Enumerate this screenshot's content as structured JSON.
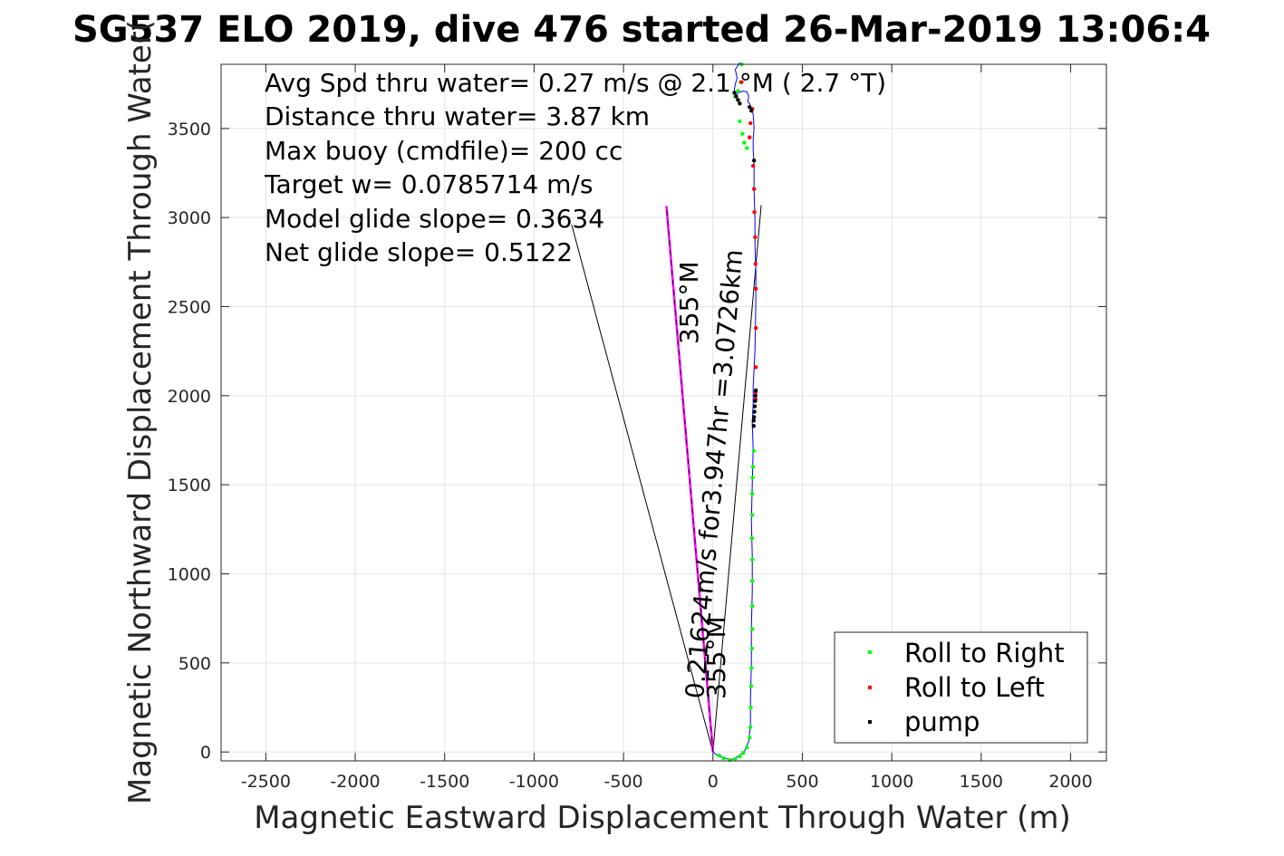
{
  "chart_data": {
    "type": "line",
    "title": "SG537 ELO 2019, dive 476 started 26-Mar-2019 13:06:4",
    "xlabel": "Magnetic Eastward Displacement Through Water (m)",
    "ylabel": "Magnetic Northward Displacement Through Water(",
    "xlim": [
      -2750,
      2200
    ],
    "ylim": [
      -50,
      3860
    ],
    "xticks": [
      -2500,
      -2000,
      -1500,
      -1000,
      -500,
      0,
      500,
      1000,
      1500,
      2000
    ],
    "yticks": [
      0,
      500,
      1000,
      1500,
      2000,
      2500,
      3000,
      3500
    ],
    "grid": true,
    "annotations": [
      "Avg Spd thru water=  0.27 m/s @   2.1 °M (  2.7 °T)",
      "Distance thru water=  3.87 km",
      "Max buoy (cmdfile)= 200 cc",
      "Target w= 0.0785714 m/s",
      "Model glide slope= 0.3634",
      "Net glide slope= 0.5122"
    ],
    "vector_labels": {
      "current": "0.21624m/s for3.947hr =3.0726km",
      "current_heading": "355°M",
      "surface_heading": "355°M"
    },
    "legend": {
      "placement": "bottom-right",
      "entries": [
        {
          "label": "Roll to Right",
          "color": "#00ff00"
        },
        {
          "label": "Roll to Left",
          "color": "#ff0000"
        },
        {
          "label": "pump",
          "color": "#000000"
        }
      ]
    },
    "colors": {
      "track": "#0000ff",
      "current_vector": "#ff00ff",
      "wedge": "#000000",
      "grid": "#e3e3e3"
    },
    "track": {
      "x": [
        0,
        20,
        50,
        100,
        150,
        180,
        200,
        210,
        210,
        215,
        215,
        220,
        220,
        215,
        220,
        225,
        220,
        225,
        225,
        230,
        235,
        238,
        240,
        240,
        235,
        235,
        230,
        230,
        225,
        225,
        230,
        225,
        215,
        210,
        205,
        195,
        200,
        190,
        170,
        140,
        125,
        120,
        125,
        135,
        130,
        125,
        150
      ],
      "y": [
        0,
        -15,
        -30,
        -45,
        -20,
        10,
        60,
        150,
        300,
        500,
        700,
        900,
        1100,
        1300,
        1500,
        1700,
        1850,
        1950,
        2050,
        2150,
        2250,
        2400,
        2550,
        2700,
        2850,
        3000,
        3150,
        3300,
        3380,
        3440,
        3500,
        3580,
        3615,
        3620,
        3640,
        3650,
        3680,
        3705,
        3710,
        3700,
        3680,
        3720,
        3750,
        3780,
        3810,
        3830,
        3870
      ]
    },
    "roll_right_points": [
      [
        35,
        -20
      ],
      [
        60,
        -35
      ],
      [
        95,
        -45
      ],
      [
        125,
        -40
      ],
      [
        150,
        -25
      ],
      [
        170,
        -5
      ],
      [
        190,
        25
      ],
      [
        205,
        80
      ],
      [
        210,
        140
      ],
      [
        212,
        250
      ],
      [
        214,
        370
      ],
      [
        216,
        470
      ],
      [
        218,
        580
      ],
      [
        220,
        690
      ],
      [
        220,
        820
      ],
      [
        220,
        960
      ],
      [
        220,
        1080
      ],
      [
        218,
        1200
      ],
      [
        220,
        1330
      ],
      [
        220,
        1450
      ],
      [
        222,
        1540
      ],
      [
        224,
        1600
      ],
      [
        228,
        1690
      ],
      [
        190,
        3390
      ],
      [
        175,
        3420
      ],
      [
        165,
        3470
      ],
      [
        150,
        3540
      ],
      [
        125,
        3680
      ],
      [
        140,
        3710
      ],
      [
        155,
        3760
      ],
      [
        160,
        3860
      ]
    ],
    "roll_left_points": [
      [
        205,
        3450
      ],
      [
        210,
        3530
      ],
      [
        220,
        3610
      ],
      [
        225,
        3290
      ],
      [
        230,
        3160
      ],
      [
        232,
        3030
      ],
      [
        236,
        2890
      ],
      [
        238,
        2740
      ],
      [
        240,
        2600
      ],
      [
        240,
        2380
      ],
      [
        240,
        2160
      ],
      [
        238,
        2020
      ],
      [
        238,
        1980
      ],
      [
        160,
        3760
      ]
    ],
    "pump_points": [
      [
        228,
        1830
      ],
      [
        228,
        1860
      ],
      [
        230,
        1880
      ],
      [
        232,
        1910
      ],
      [
        234,
        1940
      ],
      [
        236,
        1970
      ],
      [
        238,
        2000
      ],
      [
        240,
        2030
      ],
      [
        120,
        3700
      ],
      [
        130,
        3680
      ],
      [
        140,
        3660
      ],
      [
        150,
        3640
      ],
      [
        205,
        3620
      ],
      [
        215,
        3600
      ],
      [
        230,
        3320
      ]
    ],
    "current_vector": {
      "from": [
        0,
        0
      ],
      "to": [
        -260,
        3065
      ]
    },
    "wedge_lines": [
      {
        "from": [
          0,
          0
        ],
        "to": [
          -790,
          2960
        ]
      },
      {
        "from": [
          0,
          0
        ],
        "to": [
          270,
          3070
        ]
      }
    ]
  }
}
